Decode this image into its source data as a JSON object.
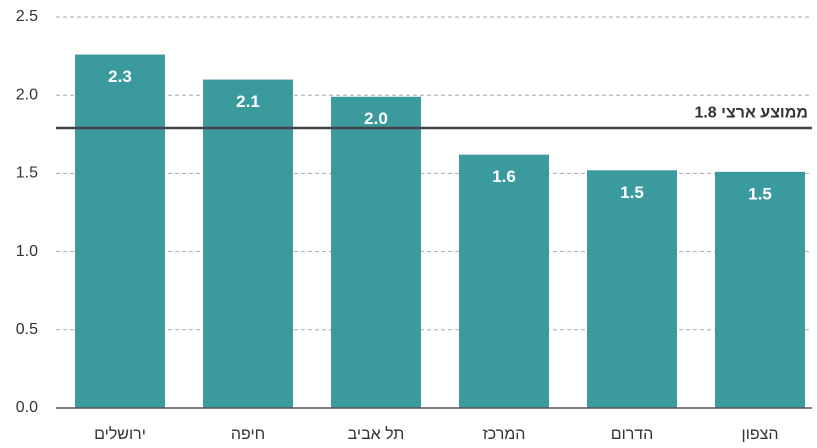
{
  "chart_data": {
    "type": "bar",
    "categories": [
      "ירושלים",
      "חיפה",
      "תל אביב",
      "המרכז",
      "הדרום",
      "הצפון"
    ],
    "values": [
      2.26,
      2.1,
      1.99,
      1.62,
      1.52,
      1.51
    ],
    "value_labels": [
      "2.3",
      "2.1",
      "2.0",
      "1.6",
      "1.5",
      "1.5"
    ],
    "color": "#3a9a9e",
    "ylim": [
      0,
      2.5
    ],
    "yticks": [
      {
        "value": 0,
        "label": "0.0"
      },
      0.5,
      {
        "value": 1,
        "label": "1.0"
      },
      1.5,
      {
        "value": 2,
        "label": "2.0"
      },
      2.5
    ],
    "grid": true,
    "reference_line": {
      "value": 1.79,
      "label": "ממוצע ארצי 1.8"
    }
  }
}
